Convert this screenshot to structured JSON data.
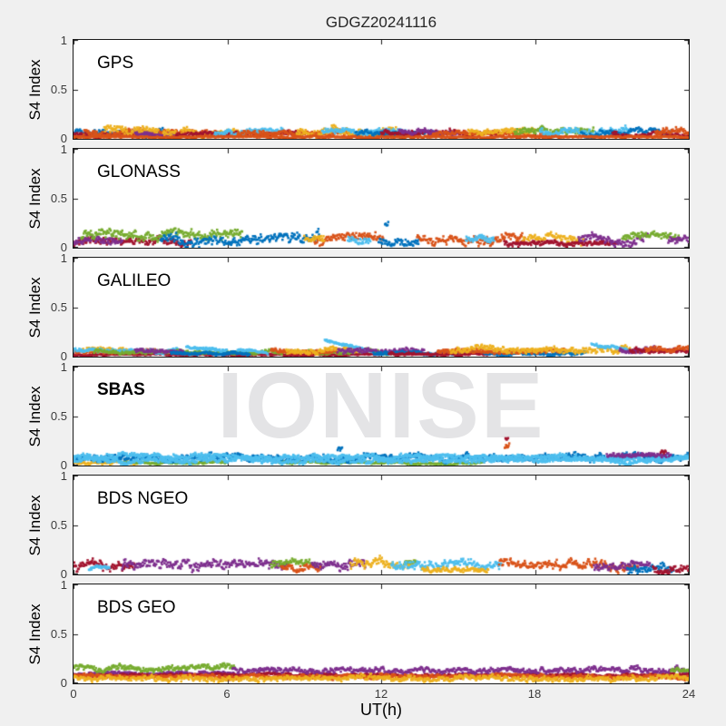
{
  "title": "GDGZ20241116",
  "watermark": "IONISE",
  "axis": {
    "xlabel": "UT(h)",
    "ylabel": "S4 Index",
    "x_ticks": [
      "0",
      "6",
      "12",
      "18",
      "24"
    ],
    "y_tick_labels": [
      "1",
      "0.5",
      "0"
    ],
    "xlim": [
      0,
      24
    ],
    "ylim": [
      0,
      1
    ]
  },
  "palette": {
    "blue": "#0072BD",
    "orange": "#D95319",
    "yellow": "#EDB120",
    "purple": "#7E2F8E",
    "green": "#77AC30",
    "cyan": "#4DBEEE",
    "darkred": "#A2142F"
  },
  "chart_data": [
    {
      "type": "scatter",
      "label": "GPS",
      "xlim": [
        0,
        24
      ],
      "ylim": [
        0,
        1
      ],
      "bands": [
        {
          "c": "blue",
          "x0": 0,
          "x1": 3.5,
          "b": 0.06,
          "a": 0.035
        },
        {
          "c": "darkred",
          "x0": 0,
          "x1": 2.6,
          "b": 0.045,
          "a": 0.03
        },
        {
          "c": "orange",
          "x0": 0.4,
          "x1": 6,
          "b": 0.06,
          "a": 0.035
        },
        {
          "c": "yellow",
          "x0": 1.2,
          "x1": 3.3,
          "b": 0.09,
          "a": 0.05
        },
        {
          "c": "purple",
          "x0": 2.4,
          "x1": 4.2,
          "b": 0.05,
          "a": 0.03
        },
        {
          "c": "yellow",
          "x0": 3.5,
          "x1": 6.6,
          "b": 0.07,
          "a": 0.04
        },
        {
          "c": "darkred",
          "x0": 4,
          "x1": 9,
          "b": 0.05,
          "a": 0.03
        },
        {
          "c": "cyan",
          "x0": 5.5,
          "x1": 8.2,
          "b": 0.07,
          "a": 0.035
        },
        {
          "c": "orange",
          "x0": 6.4,
          "x1": 12,
          "b": 0.055,
          "a": 0.035
        },
        {
          "c": "yellow",
          "x0": 8.7,
          "x1": 12.6,
          "b": 0.08,
          "a": 0.05
        },
        {
          "c": "cyan",
          "x0": 9.7,
          "x1": 13,
          "b": 0.07,
          "a": 0.035
        },
        {
          "c": "blue",
          "x0": 11,
          "x1": 14.2,
          "b": 0.05,
          "a": 0.03
        },
        {
          "c": "darkred",
          "x0": 12,
          "x1": 16.6,
          "b": 0.055,
          "a": 0.035
        },
        {
          "c": "purple",
          "x0": 12.7,
          "x1": 15,
          "b": 0.07,
          "a": 0.03
        },
        {
          "c": "orange",
          "x0": 14,
          "x1": 18.6,
          "b": 0.05,
          "a": 0.03
        },
        {
          "c": "yellow",
          "x0": 15.4,
          "x1": 18,
          "b": 0.07,
          "a": 0.04
        },
        {
          "c": "green",
          "x0": 17.2,
          "x1": 20.3,
          "b": 0.07,
          "a": 0.04
        },
        {
          "c": "cyan",
          "x0": 18.2,
          "x1": 21.7,
          "b": 0.07,
          "a": 0.04
        },
        {
          "c": "blue",
          "x0": 19.8,
          "x1": 23.3,
          "b": 0.065,
          "a": 0.04
        },
        {
          "c": "darkred",
          "x0": 21,
          "x1": 24,
          "b": 0.05,
          "a": 0.03
        },
        {
          "c": "orange",
          "x0": 22.7,
          "x1": 24,
          "b": 0.075,
          "a": 0.04
        },
        {
          "c": "orange",
          "x0": 0,
          "x1": 24,
          "b": 0.02,
          "a": 0.012
        }
      ]
    },
    {
      "type": "scatter",
      "label": "GLONASS",
      "xlim": [
        0,
        24
      ],
      "ylim": [
        0,
        1
      ],
      "bands": [
        {
          "c": "darkred",
          "x0": 0,
          "x1": 4.6,
          "b": 0.06,
          "a": 0.04
        },
        {
          "c": "purple",
          "x0": 0,
          "x1": 1.9,
          "b": 0.08,
          "a": 0.05
        },
        {
          "c": "green",
          "x0": 0.3,
          "x1": 6.6,
          "b": 0.12,
          "a": 0.05,
          "w": 0.03
        },
        {
          "c": "blue",
          "x0": 3.4,
          "x1": 9.6,
          "b": 0.06,
          "a": 0.05,
          "w": 0.045
        },
        {
          "c": "orange",
          "x0": 9.4,
          "x1": 12.1,
          "b": 0.08,
          "a": 0.05
        },
        {
          "c": "yellow",
          "x0": 9,
          "x1": 9.8,
          "b": 0.1,
          "a": 0.04
        },
        {
          "c": "cyan",
          "x0": 10.7,
          "x1": 11.6,
          "b": 0.07,
          "a": 0.04
        },
        {
          "c": "blue",
          "x0": 11.9,
          "x1": 13.5,
          "b": 0.06,
          "a": 0.045
        },
        {
          "c": "blue",
          "x0": 12.15,
          "x1": 12.3,
          "b": 0.24,
          "a": 0.03
        },
        {
          "c": "orange",
          "x0": 13.4,
          "x1": 17.6,
          "b": 0.075,
          "a": 0.05,
          "w": 0.035
        },
        {
          "c": "cyan",
          "x0": 15.3,
          "x1": 16.4,
          "b": 0.09,
          "a": 0.04
        },
        {
          "c": "yellow",
          "x0": 17.5,
          "x1": 19.9,
          "b": 0.085,
          "a": 0.045
        },
        {
          "c": "darkred",
          "x0": 16.8,
          "x1": 21.2,
          "b": 0.05,
          "a": 0.03
        },
        {
          "c": "purple",
          "x0": 19.7,
          "x1": 22.4,
          "b": 0.09,
          "a": 0.05
        },
        {
          "c": "green",
          "x0": 21.4,
          "x1": 23.6,
          "b": 0.11,
          "a": 0.05
        },
        {
          "c": "purple",
          "x0": 23.2,
          "x1": 24,
          "b": 0.08,
          "a": 0.045
        }
      ]
    },
    {
      "type": "scatter",
      "label": "GALILEO",
      "xlim": [
        0,
        24
      ],
      "ylim": [
        0,
        1
      ],
      "bands": [
        {
          "c": "darkred",
          "x0": 0,
          "x1": 12,
          "b": 0.02,
          "a": 0.012
        },
        {
          "c": "orange",
          "x0": 0,
          "x1": 3.2,
          "b": 0.05,
          "a": 0.025
        },
        {
          "c": "yellow",
          "x0": 0.3,
          "x1": 2.1,
          "b": 0.065,
          "a": 0.03
        },
        {
          "c": "cyan",
          "x0": 0,
          "x1": 4.2,
          "b": 0.06,
          "a": 0.025
        },
        {
          "c": "green",
          "x0": 0.8,
          "x1": 13.2,
          "b": 0.045,
          "a": 0.022
        },
        {
          "c": "purple",
          "x0": 2.4,
          "x1": 4.3,
          "b": 0.055,
          "a": 0.025
        },
        {
          "c": "blue",
          "x0": 3.8,
          "x1": 6.9,
          "b": 0.035,
          "a": 0.02
        },
        {
          "c": "cyan",
          "x0": 4.4,
          "x1": 6,
          "b": 0.1,
          "b2": 0.05,
          "a": 0.018
        },
        {
          "c": "cyan",
          "x0": 6.4,
          "x1": 7.6,
          "b": 0.07,
          "b2": 0.04,
          "a": 0.015
        },
        {
          "c": "orange",
          "x0": 7.7,
          "x1": 10.3,
          "b": 0.05,
          "a": 0.028
        },
        {
          "c": "yellow",
          "x0": 8.3,
          "x1": 11.3,
          "b": 0.065,
          "a": 0.035
        },
        {
          "c": "cyan",
          "x0": 9.8,
          "x1": 11.7,
          "b": 0.17,
          "b2": 0.04,
          "a": 0.016
        },
        {
          "c": "purple",
          "x0": 10.3,
          "x1": 13.7,
          "b": 0.05,
          "a": 0.028
        },
        {
          "c": "blue",
          "x0": 11.7,
          "x1": 15.7,
          "b": 0.035,
          "a": 0.022
        },
        {
          "c": "darkred",
          "x0": 12.3,
          "x1": 16.3,
          "b": 0.025,
          "a": 0.018
        },
        {
          "c": "blue",
          "x0": 16,
          "x1": 20,
          "b": 0.03,
          "a": 0.02
        },
        {
          "c": "orange",
          "x0": 14.2,
          "x1": 19.2,
          "b": 0.05,
          "a": 0.03
        },
        {
          "c": "yellow",
          "x0": 14.7,
          "x1": 21.7,
          "b": 0.07,
          "a": 0.04
        },
        {
          "c": "cyan",
          "x0": 20.2,
          "x1": 22.1,
          "b": 0.13,
          "b2": 0.05,
          "a": 0.02
        },
        {
          "c": "purple",
          "x0": 21.3,
          "x1": 22.7,
          "b": 0.07,
          "a": 0.03
        },
        {
          "c": "darkred",
          "x0": 21.7,
          "x1": 24,
          "b": 0.05,
          "a": 0.03
        },
        {
          "c": "orange",
          "x0": 22.3,
          "x1": 24,
          "b": 0.07,
          "a": 0.035
        }
      ]
    },
    {
      "type": "scatter",
      "label": "SBAS",
      "label_bold": true,
      "xlim": [
        0,
        24
      ],
      "ylim": [
        0,
        1
      ],
      "bands": [
        {
          "c": "yellow",
          "x0": 0,
          "x1": 2.6,
          "b": 0.035,
          "a": 0.02
        },
        {
          "c": "green",
          "x0": 2,
          "x1": 6,
          "b": 0.03,
          "a": 0.015
        },
        {
          "c": "green",
          "x0": 8,
          "x1": 16,
          "b": 0.03,
          "a": 0.015
        },
        {
          "c": "blue",
          "x0": 0,
          "x1": 24,
          "b": 0.08,
          "a": 0.04
        },
        {
          "c": "cyan",
          "x0": 0,
          "x1": 24,
          "b": 0.055,
          "a": 0.03
        },
        {
          "c": "cyan",
          "x0": 0,
          "x1": 24,
          "b": 0.09,
          "a": 0.03
        },
        {
          "c": "blue",
          "x0": 10.3,
          "x1": 10.5,
          "b": 0.16,
          "a": 0.03
        },
        {
          "c": "orange",
          "x0": 16.82,
          "x1": 17,
          "b": 0.22,
          "a": 0.05
        },
        {
          "c": "darkred",
          "x0": 16.85,
          "x1": 16.95,
          "b": 0.27,
          "a": 0.015
        },
        {
          "c": "purple",
          "x0": 20.8,
          "x1": 23.3,
          "b": 0.11,
          "a": 0.03
        },
        {
          "c": "darkred",
          "x0": 22.9,
          "x1": 23.1,
          "b": 0.13,
          "a": 0.02
        }
      ]
    },
    {
      "type": "scatter",
      "label": "BDS NGEO",
      "xlim": [
        0,
        24
      ],
      "ylim": [
        0,
        1
      ],
      "bands": [
        {
          "c": "darkred",
          "x0": 0,
          "x1": 2.4,
          "b": 0.075,
          "a": 0.05,
          "w": 0.035
        },
        {
          "c": "cyan",
          "x0": 0.6,
          "x1": 1.4,
          "b": 0.06,
          "a": 0.02
        },
        {
          "c": "purple",
          "x0": 1.9,
          "x1": 8.4,
          "b": 0.07,
          "a": 0.05,
          "w": 0.04
        },
        {
          "c": "green",
          "x0": 7.7,
          "x1": 9.5,
          "b": 0.09,
          "a": 0.045
        },
        {
          "c": "orange",
          "x0": 8.1,
          "x1": 9.7,
          "b": 0.075,
          "a": 0.04
        },
        {
          "c": "purple",
          "x0": 9.3,
          "x1": 11.4,
          "b": 0.07,
          "a": 0.05,
          "w": 0.035
        },
        {
          "c": "yellow",
          "x0": 10.8,
          "x1": 13.3,
          "b": 0.08,
          "a": 0.05,
          "w": 0.035
        },
        {
          "c": "green",
          "x0": 12.9,
          "x1": 13.4,
          "b": 0.12,
          "a": 0.02
        },
        {
          "c": "cyan",
          "x0": 12.4,
          "x1": 16.7,
          "b": 0.07,
          "a": 0.05,
          "w": 0.04
        },
        {
          "c": "yellow",
          "x0": 13.6,
          "x1": 16.2,
          "b": 0.05,
          "a": 0.03
        },
        {
          "c": "orange",
          "x0": 16.6,
          "x1": 22,
          "b": 0.08,
          "a": 0.05,
          "w": 0.035
        },
        {
          "c": "purple",
          "x0": 20.3,
          "x1": 22.5,
          "b": 0.09,
          "a": 0.045
        },
        {
          "c": "blue",
          "x0": 21.6,
          "x1": 23.4,
          "b": 0.06,
          "a": 0.05
        },
        {
          "c": "darkred",
          "x0": 22.6,
          "x1": 24,
          "b": 0.07,
          "a": 0.05
        }
      ]
    },
    {
      "type": "scatter",
      "label": "BDS GEO",
      "xlim": [
        0,
        24
      ],
      "ylim": [
        0,
        1
      ],
      "bands": [
        {
          "c": "purple",
          "x0": 0,
          "x1": 6.3,
          "b": 0.1,
          "a": 0.02
        },
        {
          "c": "darkred",
          "x0": 0,
          "x1": 24,
          "b": 0.085,
          "a": 0.018
        },
        {
          "c": "green",
          "x0": 0,
          "x1": 6.3,
          "b": 0.14,
          "a": 0.03,
          "w": 0.02
        },
        {
          "c": "purple",
          "x0": 6.2,
          "x1": 24,
          "b": 0.12,
          "a": 0.028,
          "w": 0.02
        },
        {
          "c": "orange",
          "x0": 0,
          "x1": 24,
          "b": 0.06,
          "a": 0.022,
          "w": 0.015
        },
        {
          "c": "yellow",
          "x0": 0,
          "x1": 24,
          "b": 0.04,
          "a": 0.028,
          "w": 0.02
        },
        {
          "c": "green",
          "x0": 23.3,
          "x1": 24,
          "b": 0.13,
          "a": 0.025
        }
      ]
    }
  ]
}
